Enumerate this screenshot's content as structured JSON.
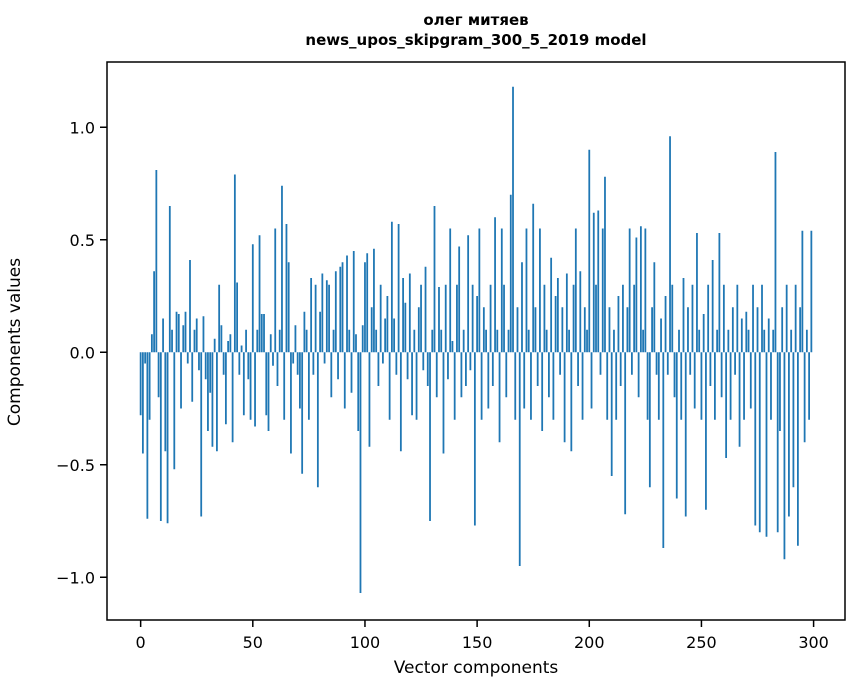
{
  "title": {
    "line1": "олег митяев",
    "line2": "news_upos_skipgram_300_5_2019 model"
  },
  "axes": {
    "x_label": "Vector components",
    "y_label": "Components values"
  },
  "chart_data": {
    "type": "bar",
    "title": "олег митяев\nnews_upos_skipgram_300_5_2019 model",
    "xlabel": "Vector components",
    "ylabel": "Components values",
    "legend": "none",
    "grid": false,
    "bar_color": "#1f77b4",
    "n_components": 300,
    "x_ticks": [
      0,
      50,
      100,
      150,
      200,
      250,
      300
    ],
    "y_ticks": [
      -1.0,
      -0.5,
      0.0,
      0.5,
      1.0
    ],
    "xlim": [
      -15,
      314
    ],
    "ylim": [
      -1.19,
      1.29
    ],
    "values": [
      -0.28,
      -0.45,
      -0.05,
      -0.74,
      -0.3,
      0.08,
      0.36,
      0.81,
      -0.2,
      -0.75,
      0.15,
      -0.44,
      -0.76,
      0.65,
      0.1,
      -0.52,
      0.18,
      0.17,
      -0.25,
      0.12,
      0.18,
      -0.05,
      0.41,
      -0.22,
      0.1,
      0.15,
      -0.08,
      -0.73,
      0.16,
      -0.12,
      -0.35,
      -0.18,
      -0.42,
      0.06,
      -0.44,
      0.3,
      0.12,
      -0.1,
      -0.32,
      0.05,
      0.08,
      -0.4,
      0.79,
      0.31,
      -0.1,
      0.03,
      -0.28,
      0.1,
      -0.12,
      -0.3,
      0.48,
      -0.33,
      0.1,
      0.52,
      0.17,
      0.17,
      -0.28,
      -0.35,
      0.08,
      -0.06,
      0.55,
      -0.15,
      0.1,
      0.74,
      -0.3,
      0.57,
      0.4,
      -0.45,
      -0.05,
      0.12,
      -0.1,
      -0.25,
      -0.54,
      0.18,
      0.1,
      -0.3,
      0.33,
      -0.1,
      0.3,
      -0.6,
      0.18,
      0.35,
      -0.05,
      0.32,
      0.3,
      -0.2,
      0.1,
      0.36,
      -0.12,
      0.38,
      0.4,
      -0.25,
      0.43,
      0.1,
      -0.18,
      0.45,
      0.08,
      -0.35,
      -1.07,
      0.12,
      0.4,
      0.44,
      -0.42,
      0.2,
      0.46,
      0.1,
      -0.15,
      0.3,
      -0.05,
      0.15,
      0.25,
      -0.3,
      0.58,
      0.15,
      -0.1,
      0.57,
      -0.44,
      0.33,
      0.22,
      -0.12,
      0.35,
      -0.28,
      0.1,
      -0.3,
      0.2,
      0.3,
      -0.08,
      0.38,
      -0.15,
      -0.75,
      0.1,
      0.65,
      -0.2,
      0.29,
      0.1,
      -0.45,
      0.3,
      -0.12,
      0.55,
      0.05,
      -0.3,
      0.3,
      0.47,
      -0.2,
      0.1,
      -0.15,
      0.52,
      -0.08,
      0.3,
      -0.77,
      0.25,
      0.55,
      -0.3,
      0.2,
      0.1,
      -0.25,
      0.3,
      -0.15,
      0.6,
      0.1,
      -0.4,
      0.55,
      0.3,
      -0.2,
      0.1,
      0.7,
      1.18,
      -0.3,
      0.2,
      -0.95,
      0.4,
      -0.25,
      0.55,
      0.1,
      -0.3,
      0.66,
      0.2,
      -0.15,
      0.55,
      -0.35,
      0.3,
      0.1,
      -0.2,
      0.42,
      -0.3,
      0.25,
      0.33,
      -0.1,
      0.2,
      -0.4,
      0.35,
      0.1,
      -0.44,
      0.3,
      0.55,
      -0.15,
      0.36,
      -0.3,
      0.2,
      0.1,
      0.9,
      -0.25,
      0.62,
      0.3,
      0.63,
      -0.1,
      0.55,
      0.78,
      -0.3,
      0.2,
      -0.55,
      0.1,
      -0.3,
      0.25,
      -0.15,
      0.3,
      -0.72,
      0.2,
      0.55,
      -0.1,
      0.3,
      0.51,
      -0.2,
      0.56,
      0.1,
      0.55,
      -0.3,
      -0.6,
      0.2,
      0.4,
      -0.1,
      -0.3,
      0.15,
      -0.87,
      0.25,
      -0.1,
      0.96,
      0.3,
      -0.2,
      -0.65,
      0.1,
      -0.3,
      0.33,
      -0.73,
      0.2,
      -0.1,
      0.3,
      -0.25,
      0.53,
      0.1,
      -0.3,
      0.17,
      -0.7,
      0.3,
      -0.15,
      0.41,
      -0.3,
      0.1,
      0.53,
      -0.2,
      0.3,
      -0.47,
      0.1,
      -0.3,
      0.2,
      -0.1,
      0.3,
      -0.42,
      0.15,
      -0.3,
      0.18,
      0.1,
      -0.25,
      0.3,
      -0.77,
      0.2,
      -0.8,
      0.3,
      0.1,
      -0.82,
      0.15,
      -0.3,
      0.1,
      0.89,
      -0.8,
      -0.35,
      0.2,
      -0.92,
      0.3,
      -0.73,
      0.1,
      -0.6,
      0.3,
      -0.86,
      0.2,
      0.54,
      -0.4,
      0.1,
      -0.3,
      0.54
    ]
  }
}
